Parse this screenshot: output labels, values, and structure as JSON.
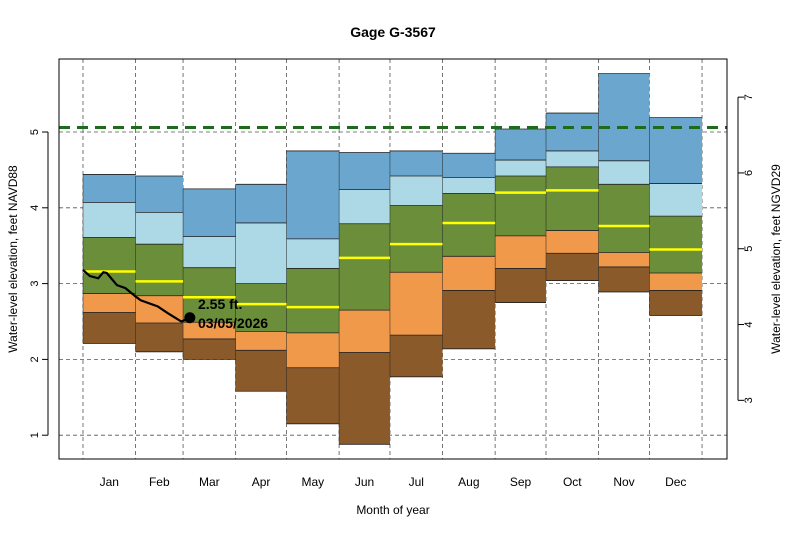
{
  "chart_data": {
    "type": "area",
    "title": "Gage G-3567",
    "xlabel": "Month of year",
    "ylabel": "Water-level elevation, feet NAVD88",
    "ylabel_right": "Water-level elevation, feet NGVD29",
    "categories": [
      "Jan",
      "Feb",
      "Mar",
      "Apr",
      "May",
      "Jun",
      "Jul",
      "Aug",
      "Sep",
      "Oct",
      "Nov",
      "Dec"
    ],
    "yticks": [
      1,
      2,
      3,
      4,
      5
    ],
    "yticks_right": [
      3,
      4,
      5,
      6,
      7
    ],
    "grid": true,
    "colors": {
      "band_fills": [
        "#8B5A2B",
        "#F0994A",
        "#6B8E3A",
        "#ADD8E6",
        "#6BA6CF"
      ],
      "median": "#FFFF00",
      "reference_line": "#1E6B1E",
      "current": "#000000"
    },
    "monthly_bands": [
      {
        "month": "Jan",
        "bounds": [
          2.21,
          2.62,
          2.87,
          3.61,
          4.07,
          4.44
        ],
        "median": 3.16
      },
      {
        "month": "Feb",
        "bounds": [
          2.1,
          2.48,
          2.84,
          3.52,
          3.94,
          4.42
        ],
        "median": 3.03
      },
      {
        "month": "Mar",
        "bounds": [
          2.0,
          2.27,
          2.49,
          3.21,
          3.62,
          4.25
        ],
        "median": 2.82
      },
      {
        "month": "Apr",
        "bounds": [
          1.58,
          2.12,
          2.37,
          3.0,
          3.8,
          4.31
        ],
        "median": 2.73
      },
      {
        "month": "May",
        "bounds": [
          1.15,
          1.89,
          2.35,
          3.2,
          3.59,
          4.75
        ],
        "median": 2.69
      },
      {
        "month": "Jun",
        "bounds": [
          0.88,
          2.09,
          2.65,
          3.79,
          4.24,
          4.73
        ],
        "median": 3.34
      },
      {
        "month": "Jul",
        "bounds": [
          1.77,
          2.32,
          3.15,
          4.03,
          4.42,
          4.75
        ],
        "median": 3.52
      },
      {
        "month": "Aug",
        "bounds": [
          2.14,
          2.91,
          3.36,
          4.19,
          4.4,
          4.72
        ],
        "median": 3.8
      },
      {
        "month": "Sep",
        "bounds": [
          2.75,
          3.2,
          3.63,
          4.42,
          4.63,
          5.04
        ],
        "median": 4.2
      },
      {
        "month": "Oct",
        "bounds": [
          3.04,
          3.4,
          3.7,
          4.54,
          4.75,
          5.25
        ],
        "median": 4.23
      },
      {
        "month": "Nov",
        "bounds": [
          2.89,
          3.22,
          3.41,
          4.31,
          4.62,
          5.77
        ],
        "median": 3.76
      },
      {
        "month": "Dec",
        "bounds": [
          2.58,
          2.91,
          3.14,
          3.89,
          4.32,
          5.19
        ],
        "median": 3.45
      }
    ],
    "reference_level": 5.06,
    "current_series": [
      {
        "date": "01/01",
        "value": 3.18
      },
      {
        "date": "01/05",
        "value": 3.1
      },
      {
        "date": "01/10",
        "value": 3.07
      },
      {
        "date": "01/13",
        "value": 3.15
      },
      {
        "date": "01/15",
        "value": 3.14
      },
      {
        "date": "01/21",
        "value": 2.98
      },
      {
        "date": "01/26",
        "value": 2.94
      },
      {
        "date": "02/01",
        "value": 2.83
      },
      {
        "date": "02/04",
        "value": 2.78
      },
      {
        "date": "02/14",
        "value": 2.7
      },
      {
        "date": "02/20",
        "value": 2.61
      },
      {
        "date": "02/28",
        "value": 2.5
      },
      {
        "date": "03/05",
        "value": 2.55
      }
    ],
    "annotation": {
      "value_label": "2.55 ft.",
      "date_label": "03/05/2026"
    }
  }
}
